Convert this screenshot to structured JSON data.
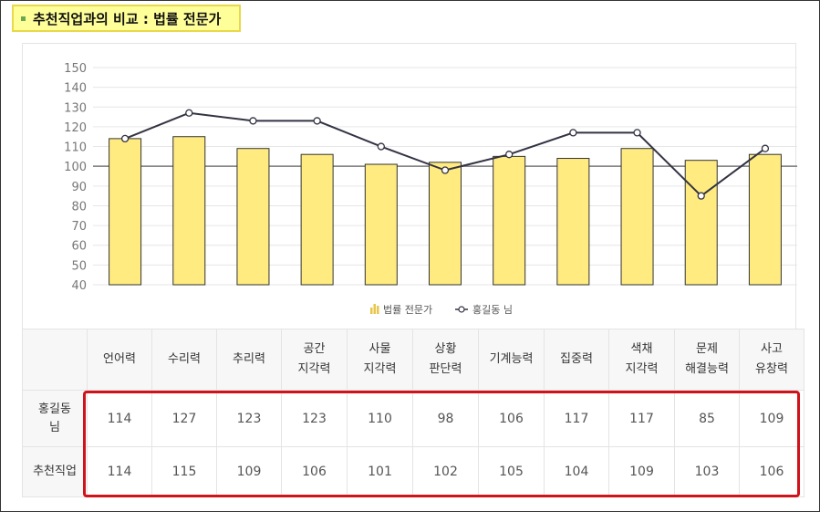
{
  "title": "추천직업과의 비교 : 법률 전문가",
  "colors": {
    "bar": "#ffeb7f",
    "bar_stroke": "#333333",
    "line": "#333344",
    "highlight": "#d0121a"
  },
  "chart_data": {
    "type": "bar+line",
    "categories": [
      "언어력",
      "수리력",
      "추리력",
      "공간 지각력",
      "사물 지각력",
      "상황 판단력",
      "기계능력",
      "집중력",
      "색채 지각력",
      "문제 해결능력",
      "사고 유창력"
    ],
    "series": [
      {
        "name": "법률 전문가",
        "type": "bar",
        "values": [
          114,
          115,
          109,
          106,
          101,
          102,
          105,
          104,
          109,
          103,
          106
        ]
      },
      {
        "name": "홍길동 님",
        "type": "line",
        "values": [
          114,
          127,
          123,
          123,
          110,
          98,
          106,
          117,
          117,
          85,
          109
        ]
      }
    ],
    "y_ticks": [
      40,
      50,
      60,
      70,
      80,
      90,
      100,
      110,
      120,
      130,
      140,
      150
    ],
    "ylim": [
      40,
      150
    ],
    "reference_line": 100,
    "legend": [
      "법률 전문가",
      "홍길동 님"
    ],
    "legend_position": "bottom"
  },
  "table": {
    "headers": [
      [
        "언어력"
      ],
      [
        "수리력"
      ],
      [
        "추리력"
      ],
      [
        "공간",
        "지각력"
      ],
      [
        "사물",
        "지각력"
      ],
      [
        "상황",
        "판단력"
      ],
      [
        "기계능력"
      ],
      [
        "집중력"
      ],
      [
        "색채",
        "지각력"
      ],
      [
        "문제",
        "해결능력"
      ],
      [
        "사고",
        "유창력"
      ]
    ],
    "rows": [
      {
        "label": [
          "홍길동",
          "님"
        ],
        "values": [
          "114",
          "127",
          "123",
          "123",
          "110",
          "98",
          "106",
          "117",
          "117",
          "85",
          "109"
        ]
      },
      {
        "label": [
          "추천직업"
        ],
        "values": [
          "114",
          "115",
          "109",
          "106",
          "101",
          "102",
          "105",
          "104",
          "109",
          "103",
          "106"
        ]
      }
    ]
  }
}
